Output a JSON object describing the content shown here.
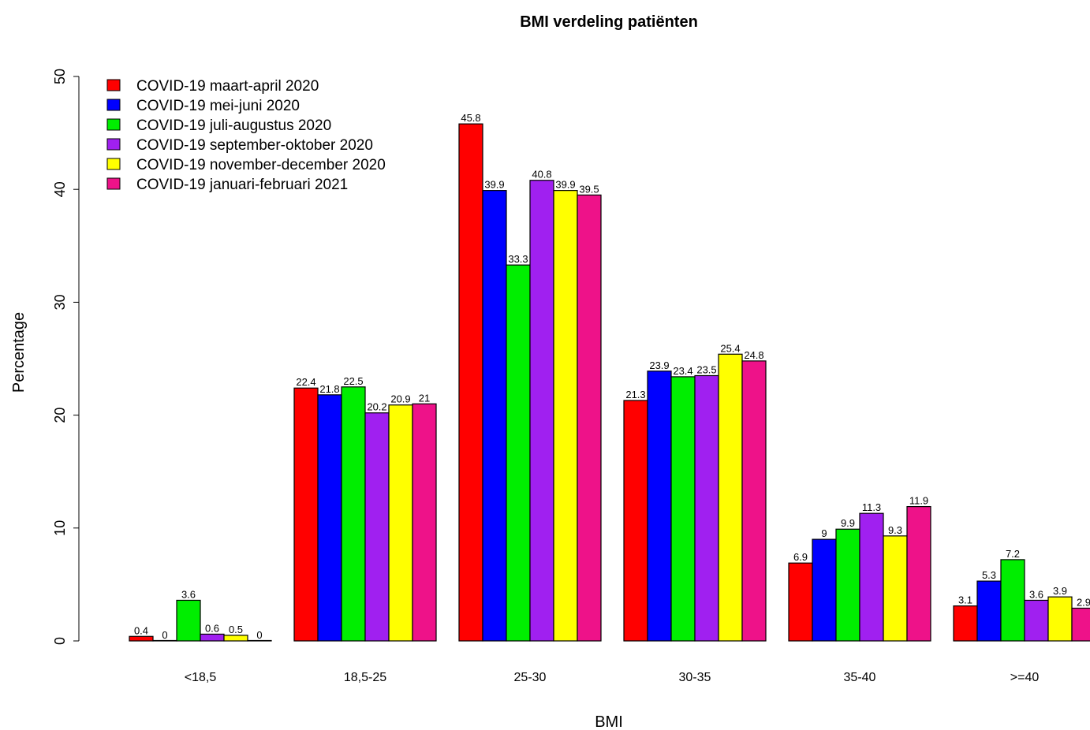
{
  "chart_data": {
    "type": "bar",
    "title": "BMI verdeling patiënten",
    "xlabel": "BMI",
    "ylabel": "Percentage",
    "ylim": [
      0,
      50
    ],
    "yticks": [
      0,
      10,
      20,
      30,
      40,
      50
    ],
    "categories": [
      "<18,5",
      "18,5-25",
      "25-30",
      "30-35",
      "35-40",
      ">=40"
    ],
    "legend_position": "top-left",
    "series": [
      {
        "name": "COVID-19 maart-april 2020",
        "color": "#ff0000",
        "values": [
          0.4,
          22.4,
          45.8,
          21.3,
          6.9,
          3.1
        ]
      },
      {
        "name": "COVID-19 mei-juni 2020",
        "color": "#0000ff",
        "values": [
          0,
          21.8,
          39.9,
          23.9,
          9,
          5.3
        ]
      },
      {
        "name": "COVID-19 juli-augustus 2020",
        "color": "#00ee00",
        "values": [
          3.6,
          22.5,
          33.3,
          23.4,
          9.9,
          7.2
        ]
      },
      {
        "name": "COVID-19 september-oktober 2020",
        "color": "#a020f0",
        "values": [
          0.6,
          20.2,
          40.8,
          23.5,
          11.3,
          3.6
        ]
      },
      {
        "name": "COVID-19 november-december 2020",
        "color": "#ffff00",
        "values": [
          0.5,
          20.9,
          39.9,
          25.4,
          9.3,
          3.9
        ]
      },
      {
        "name": "COVID-19 januari-februari 2021",
        "color": "#ee1289",
        "values": [
          0,
          21,
          39.5,
          24.8,
          11.9,
          2.9
        ]
      }
    ]
  }
}
